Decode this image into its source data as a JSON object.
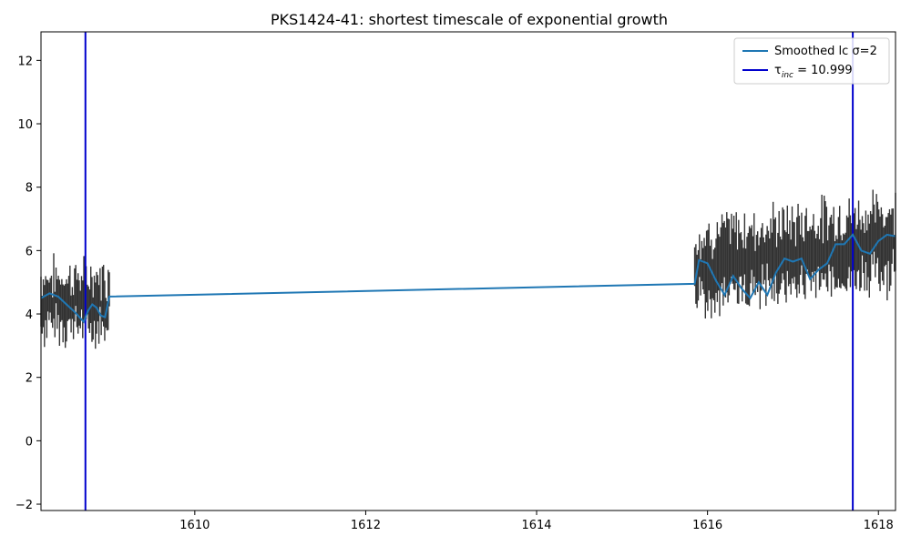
{
  "chart_data": {
    "type": "line",
    "title": "PKS1424-41: shortest timescale of exponential growth",
    "xlabel": "",
    "ylabel": "",
    "xlim": [
      1608.2,
      1618.2
    ],
    "ylim": [
      -2.2,
      12.9
    ],
    "xticks": [
      1610,
      1612,
      1614,
      1616,
      1618
    ],
    "yticks": [
      -2,
      0,
      2,
      4,
      6,
      8,
      10,
      12
    ],
    "grid": false,
    "legend_position": "top-right",
    "colors": {
      "smoothed": "#1f77b4",
      "vlines": "#0000cd",
      "errorbars": "#333333"
    },
    "smoothed_lc": {
      "name": "Smoothed lc σ=2",
      "x": [
        1608.2,
        1608.3,
        1608.4,
        1608.5,
        1608.6,
        1608.7,
        1608.75,
        1608.8,
        1608.85,
        1608.9,
        1608.95,
        1609.0,
        1615.85,
        1615.9,
        1616.0,
        1616.1,
        1616.2,
        1616.3,
        1616.4,
        1616.5,
        1616.6,
        1616.7,
        1616.8,
        1616.9,
        1617.0,
        1617.1,
        1617.2,
        1617.3,
        1617.4,
        1617.5,
        1617.6,
        1617.7,
        1617.8,
        1617.9,
        1618.0,
        1618.1,
        1618.2
      ],
      "y": [
        4.5,
        4.65,
        4.55,
        4.3,
        4.05,
        3.75,
        4.1,
        4.3,
        4.2,
        3.95,
        3.9,
        4.55,
        4.95,
        5.7,
        5.6,
        5.05,
        4.6,
        5.2,
        4.8,
        4.5,
        5.0,
        4.6,
        5.3,
        5.75,
        5.65,
        5.75,
        5.1,
        5.4,
        5.6,
        6.2,
        6.2,
        6.5,
        6.0,
        5.9,
        6.3,
        6.5,
        6.45
      ]
    },
    "threshold": {
      "label": "τ",
      "label_sub": "inc",
      "label_suffix": " = 10.999",
      "x": [
        1608.72,
        1617.7
      ]
    },
    "error_bars": {
      "segments": [
        {
          "x_range": [
            1608.2,
            1609.0
          ],
          "n": 60,
          "center": 4.4,
          "spread": 0.55,
          "err": 0.75
        },
        {
          "x_range": [
            1615.85,
            1618.2
          ],
          "n": 170,
          "center": 5.5,
          "spread": 0.55,
          "err": 0.95
        }
      ]
    }
  }
}
